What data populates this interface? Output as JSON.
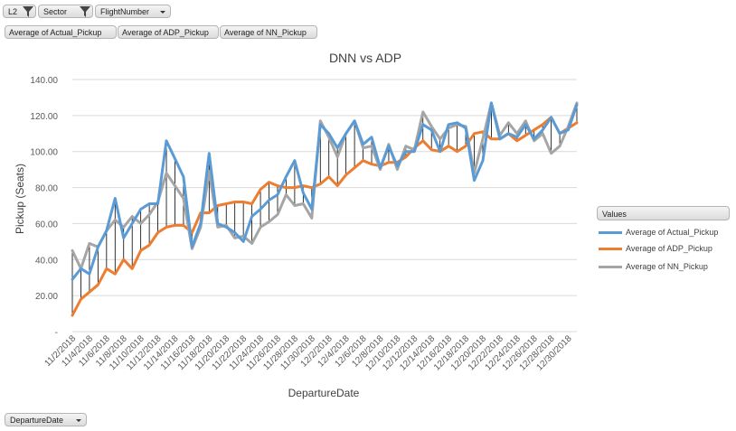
{
  "filters": [
    {
      "label": "L2",
      "kind": "filter"
    },
    {
      "label": "Sector",
      "kind": "filter"
    },
    {
      "label": "FlightNumber",
      "kind": "dropdown"
    }
  ],
  "value_buttons": [
    "Average of Actual_Pickup",
    "Average of ADP_Pickup",
    "Average of NN_Pickup"
  ],
  "axis_field_button": "DepartureDate",
  "legend": {
    "title": "Values",
    "items": [
      "Average of Actual_Pickup",
      "Average of ADP_Pickup",
      "Average of NN_Pickup"
    ]
  },
  "colors": {
    "actual": "#5b9bd5",
    "adp": "#ed7d31",
    "nn": "#a5a5a5",
    "dropline": "#000000"
  },
  "chart_data": {
    "type": "line",
    "title": "DNN vs ADP",
    "xlabel": "DepartureDate",
    "ylabel": "Pickup (Seats)",
    "ylim": [
      0,
      140
    ],
    "yticks": [
      "-",
      "20.00",
      "40.00",
      "60.00",
      "80.00",
      "100.00",
      "120.00",
      "140.00"
    ],
    "x_tick_labels": [
      "11/2/2018",
      "11/4/2018",
      "11/6/2018",
      "11/8/2018",
      "11/10/2018",
      "11/12/2018",
      "11/14/2018",
      "11/16/2018",
      "11/18/2018",
      "11/20/2018",
      "11/22/2018",
      "11/24/2018",
      "11/26/2018",
      "11/28/2018",
      "11/30/2018",
      "12/2/2018",
      "12/4/2018",
      "12/6/2018",
      "12/8/2018",
      "12/10/2018",
      "12/12/2018",
      "12/14/2018",
      "12/16/2018",
      "12/18/2018",
      "12/20/2018",
      "12/22/2018",
      "12/24/2018",
      "12/26/2018",
      "12/28/2018",
      "12/30/2018"
    ],
    "x": [
      "11/2/2018",
      "11/3/2018",
      "11/4/2018",
      "11/5/2018",
      "11/6/2018",
      "11/7/2018",
      "11/8/2018",
      "11/9/2018",
      "11/10/2018",
      "11/11/2018",
      "11/12/2018",
      "11/13/2018",
      "11/14/2018",
      "11/15/2018",
      "11/16/2018",
      "11/17/2018",
      "11/18/2018",
      "11/19/2018",
      "11/20/2018",
      "11/21/2018",
      "11/22/2018",
      "11/23/2018",
      "11/24/2018",
      "11/25/2018",
      "11/26/2018",
      "11/27/2018",
      "11/28/2018",
      "11/29/2018",
      "11/30/2018",
      "12/1/2018",
      "12/2/2018",
      "12/3/2018",
      "12/4/2018",
      "12/5/2018",
      "12/6/2018",
      "12/7/2018",
      "12/8/2018",
      "12/9/2018",
      "12/10/2018",
      "12/11/2018",
      "12/12/2018",
      "12/13/2018",
      "12/14/2018",
      "12/15/2018",
      "12/16/2018",
      "12/17/2018",
      "12/18/2018",
      "12/19/2018",
      "12/20/2018",
      "12/21/2018",
      "12/22/2018",
      "12/23/2018",
      "12/24/2018",
      "12/25/2018",
      "12/26/2018",
      "12/27/2018",
      "12/28/2018",
      "12/29/2018",
      "12/30/2018",
      "12/31/2018"
    ],
    "series": [
      {
        "name": "Average of Actual_Pickup",
        "color": "#5b9bd5",
        "values": [
          29,
          35,
          32,
          47,
          56,
          74,
          52,
          60,
          68,
          71,
          71,
          106,
          96,
          86,
          47,
          60,
          99,
          60,
          58,
          55,
          50,
          64,
          68,
          73,
          76,
          86,
          95,
          77,
          68,
          115,
          110,
          102,
          110,
          117,
          104,
          108,
          91,
          103,
          92,
          100,
          100,
          115,
          112,
          100,
          115,
          116,
          113,
          84,
          95,
          127,
          107,
          110,
          108,
          115,
          107,
          112,
          119,
          110,
          112,
          126
        ]
      },
      {
        "name": "Average of ADP_Pickup",
        "color": "#ed7d31",
        "values": [
          9,
          18,
          22,
          26,
          35,
          32,
          40,
          35,
          45,
          48,
          55,
          58,
          59,
          59,
          55,
          66,
          66,
          70,
          71,
          72,
          72,
          71,
          79,
          83,
          81,
          80,
          80,
          81,
          80,
          82,
          86,
          81,
          87,
          91,
          95,
          93,
          92,
          94,
          94,
          97,
          102,
          106,
          101,
          100,
          103,
          100,
          103,
          110,
          111,
          107,
          107,
          110,
          106,
          109,
          112,
          115,
          119,
          110,
          113,
          116
        ]
      },
      {
        "name": "Average of NN_Pickup",
        "color": "#a5a5a5",
        "values": [
          45,
          35,
          49,
          47,
          56,
          62,
          58,
          64,
          60,
          65,
          72,
          88,
          81,
          74,
          46,
          58,
          89,
          58,
          59,
          52,
          53,
          49,
          58,
          61,
          65,
          76,
          70,
          71,
          63,
          117,
          108,
          97,
          110,
          117,
          102,
          103,
          90,
          104,
          90,
          103,
          101,
          122,
          114,
          107,
          113,
          115,
          114,
          88,
          107,
          127,
          109,
          116,
          110,
          117,
          106,
          110,
          99,
          103,
          114,
          127
        ]
      }
    ]
  }
}
